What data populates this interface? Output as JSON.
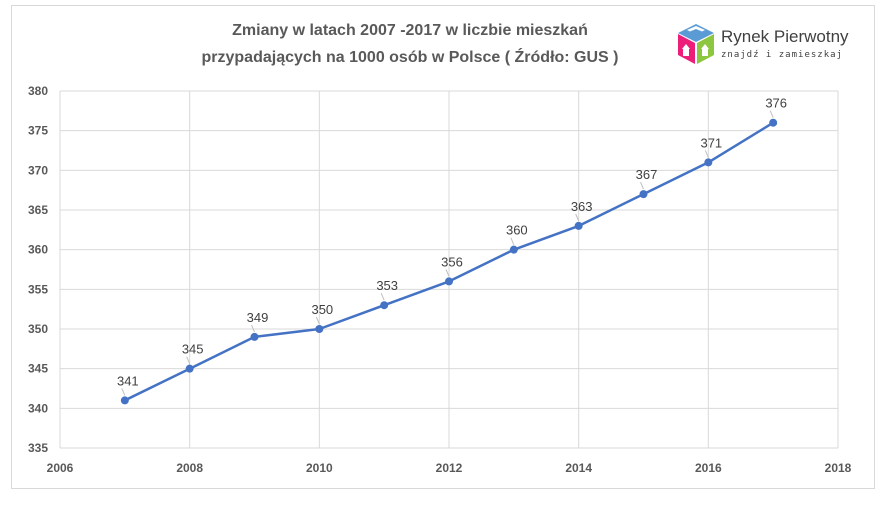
{
  "chart_data": {
    "type": "line",
    "title_lines": [
      "Zmiany w latach 2007 -2017 w liczbie mieszkań",
      "przypadających na 1000 osób w Polsce ( Źródło: GUS )"
    ],
    "xlabel": "",
    "ylabel": "",
    "xlim": [
      2006,
      2018
    ],
    "ylim": [
      335,
      380
    ],
    "x_ticks": [
      2006,
      2008,
      2010,
      2012,
      2014,
      2016,
      2018
    ],
    "y_ticks": [
      335,
      340,
      345,
      350,
      355,
      360,
      365,
      370,
      375,
      380
    ],
    "grid": "on",
    "legend": "none",
    "series": [
      {
        "color": "#4472c4",
        "x": [
          2007,
          2008,
          2009,
          2010,
          2011,
          2012,
          2013,
          2014,
          2015,
          2016,
          2017
        ],
        "y": [
          341,
          345,
          349,
          350,
          353,
          356,
          360,
          363,
          367,
          371,
          376
        ]
      }
    ]
  },
  "logo": {
    "name": "Rynek Pierwotny",
    "tagline": "znajdź i zamieszkaj",
    "colors": [
      "#5b9bd5",
      "#ed1e79",
      "#8dc63f",
      "#f7941d"
    ]
  }
}
